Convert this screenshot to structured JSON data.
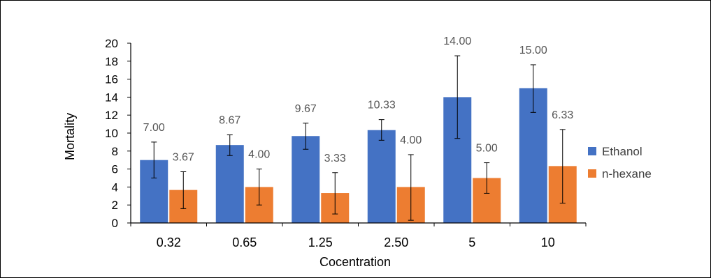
{
  "chart_data": {
    "type": "bar",
    "title": "",
    "xlabel": "Cocentration",
    "ylabel": "Mortality",
    "categories": [
      "0.32",
      "0.65",
      "1.25",
      "2.50",
      "5",
      "10"
    ],
    "series": [
      {
        "name": "Ethanol",
        "color": "#4472C4",
        "values": [
          7.0,
          8.67,
          9.67,
          10.33,
          14.0,
          15.0
        ],
        "labels": [
          "7.00",
          "8.67",
          "9.67",
          "10.33",
          "14.00",
          "15.00"
        ],
        "error_low": [
          5.0,
          7.5,
          8.2,
          9.2,
          9.4,
          12.3
        ],
        "error_high": [
          9.0,
          9.8,
          11.1,
          11.5,
          18.6,
          17.6
        ]
      },
      {
        "name": "n-hexane",
        "color": "#ED7D31",
        "values": [
          3.67,
          4.0,
          3.33,
          4.0,
          5.0,
          6.33
        ],
        "labels": [
          "3.67",
          "4.00",
          "3.33",
          "4.00",
          "5.00",
          "6.33"
        ],
        "error_low": [
          1.6,
          2.0,
          1.0,
          0.3,
          3.3,
          2.2
        ],
        "error_high": [
          5.7,
          6.0,
          5.6,
          7.6,
          6.7,
          10.4
        ]
      }
    ],
    "ylim": [
      0,
      20
    ],
    "yticks": [
      0,
      2,
      4,
      6,
      8,
      10,
      12,
      14,
      16,
      18,
      20
    ],
    "legend_position": "right",
    "grid": false
  }
}
